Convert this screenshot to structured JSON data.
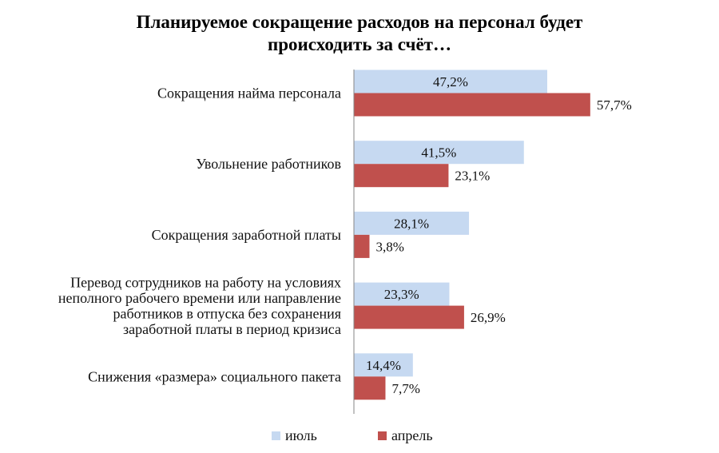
{
  "chart_data": {
    "type": "bar",
    "orientation": "horizontal",
    "title": "Планируемое сокращение расходов на персонал будет происходить за счёт…",
    "title_lines": [
      "Планируемое сокращение расходов на персонал будет",
      "происходить за счёт…"
    ],
    "categories": [
      "Сокращения найма персонала",
      "Увольнение работников",
      "Сокращения заработной платы",
      "Перевод  сотрудников на работу на условиях неполного рабочего времени или направление работников в отпуска без сохранения заработной платы в период кризиса",
      "Снижения «размера» социального пакета"
    ],
    "category_lines": [
      [
        "Сокращения найма персонала"
      ],
      [
        "Увольнение работников"
      ],
      [
        "Сокращения заработной платы"
      ],
      [
        "Перевод  сотрудников на работу на условиях",
        "неполного рабочего времени или направление",
        "работников в отпуска без сохранения",
        "заработной платы в период кризиса"
      ],
      [
        "Снижения «размера» социального пакета"
      ]
    ],
    "series": [
      {
        "name": "июль",
        "color": "#c6d9f1",
        "values": [
          47.2,
          41.5,
          28.1,
          23.3,
          14.4
        ],
        "labels": [
          "47,2%",
          "41,5%",
          "28,1%",
          "23,3%",
          "14,4%"
        ]
      },
      {
        "name": "апрель",
        "color": "#c0504d",
        "values": [
          57.7,
          23.1,
          3.8,
          26.9,
          7.7
        ],
        "labels": [
          "57,7%",
          "23,1%",
          "3,8%",
          "26,9%",
          "7,7%"
        ]
      }
    ],
    "xlim": [
      0,
      100
    ],
    "grid": false,
    "legend_position": "bottom",
    "value_labels": {
      "first_series": "inside-center",
      "second_series": "outside-end"
    },
    "axis_color": "#868686"
  }
}
